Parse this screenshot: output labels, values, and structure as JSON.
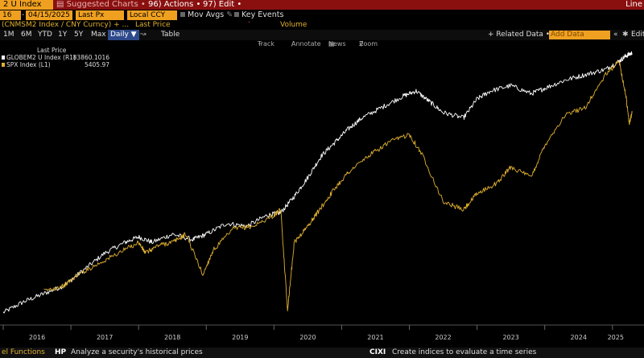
{
  "toolbar": {
    "index_name": "2 U Index",
    "suggested": "▤ Suggested Charts •",
    "actions": "96) Actions •",
    "edit": "97) Edit •",
    "line": "Line"
  },
  "params": {
    "start_date": "16",
    "end_date": "04/15/2025",
    "price_field": "Last Px",
    "currency": "Local CCY",
    "mov_avgs": "Mov Avgs",
    "key_events": "Key Events"
  },
  "subtitle": {
    "security": "(CNMSM2 Index / CNY Curncy) + ...",
    "field": "Last Price",
    "volume": "Volume"
  },
  "periods": [
    "1M",
    "6M",
    "YTD",
    "1Y",
    "5Y",
    "Max"
  ],
  "frequency": "Daily ▼",
  "table_label": "Table",
  "related_data": "+ Related Data •",
  "add_data_placeholder": "Add Data",
  "edit_label": "Edit",
  "tools": {
    "track": "Track",
    "annotate": "Annotate",
    "news": "News",
    "zoom": "Zoom"
  },
  "legend": {
    "header": "Last Price",
    "items": [
      {
        "name": "GLOBEM2 U Index (R1)",
        "value": "83860.1016",
        "color": "#ffffff"
      },
      {
        "name": "SPX Index (L1)",
        "value": "5405.97",
        "color": "#e0b030"
      }
    ]
  },
  "footer": {
    "left": "el Functions",
    "hp_code": "HP",
    "hp_text": "Analyze a security's historical prices",
    "cixi_code": "CIXI",
    "cixi_text": "Create indices to evaluate a time series"
  },
  "chart_data": {
    "type": "line",
    "x_ticks": [
      "2016",
      "2017",
      "2018",
      "2019",
      "2020",
      "2021",
      "2022",
      "2023",
      "2024",
      "2025"
    ],
    "x_range": [
      2016.0,
      2025.3
    ],
    "series": [
      {
        "name": "GLOBEM2 U Index (R1)",
        "axis": "right",
        "color": "#ffffff",
        "x": [
          2016.0,
          2016.3,
          2016.6,
          2016.9,
          2017.2,
          2017.5,
          2017.8,
          2018.0,
          2018.2,
          2018.5,
          2018.8,
          2019.0,
          2019.3,
          2019.6,
          2019.9,
          2020.1,
          2020.3,
          2020.5,
          2020.7,
          2020.9,
          2021.1,
          2021.3,
          2021.6,
          2021.9,
          2022.1,
          2022.3,
          2022.5,
          2022.8,
          2023.0,
          2023.2,
          2023.5,
          2023.8,
          2024.0,
          2024.3,
          2024.6,
          2024.9,
          2025.1,
          2025.2,
          2025.29
        ],
        "y": [
          0.04,
          0.08,
          0.11,
          0.14,
          0.2,
          0.26,
          0.3,
          0.32,
          0.3,
          0.33,
          0.31,
          0.33,
          0.37,
          0.36,
          0.4,
          0.41,
          0.47,
          0.54,
          0.62,
          0.67,
          0.72,
          0.76,
          0.8,
          0.84,
          0.86,
          0.82,
          0.78,
          0.76,
          0.83,
          0.86,
          0.88,
          0.85,
          0.87,
          0.9,
          0.92,
          0.94,
          0.97,
          0.99,
          1.0
        ]
      },
      {
        "name": "SPX Index (L1)",
        "axis": "left",
        "color": "#e0b030",
        "x": [
          2016.6,
          2016.9,
          2017.1,
          2017.4,
          2017.7,
          2018.0,
          2018.1,
          2018.3,
          2018.5,
          2018.7,
          2018.95,
          2019.1,
          2019.4,
          2019.7,
          2020.0,
          2020.1,
          2020.2,
          2020.3,
          2020.5,
          2020.7,
          2020.9,
          2021.1,
          2021.4,
          2021.7,
          2022.0,
          2022.2,
          2022.5,
          2022.8,
          2023.0,
          2023.3,
          2023.5,
          2023.8,
          2024.0,
          2024.3,
          2024.6,
          2024.9,
          2025.1,
          2025.2,
          2025.25,
          2025.29
        ],
        "y": [
          0.12,
          0.14,
          0.18,
          0.22,
          0.26,
          0.3,
          0.26,
          0.29,
          0.3,
          0.33,
          0.18,
          0.27,
          0.35,
          0.36,
          0.4,
          0.42,
          0.05,
          0.3,
          0.36,
          0.43,
          0.5,
          0.56,
          0.62,
          0.67,
          0.7,
          0.62,
          0.45,
          0.42,
          0.48,
          0.52,
          0.58,
          0.54,
          0.66,
          0.77,
          0.8,
          0.92,
          0.97,
          0.84,
          0.74,
          0.78
        ]
      }
    ]
  }
}
